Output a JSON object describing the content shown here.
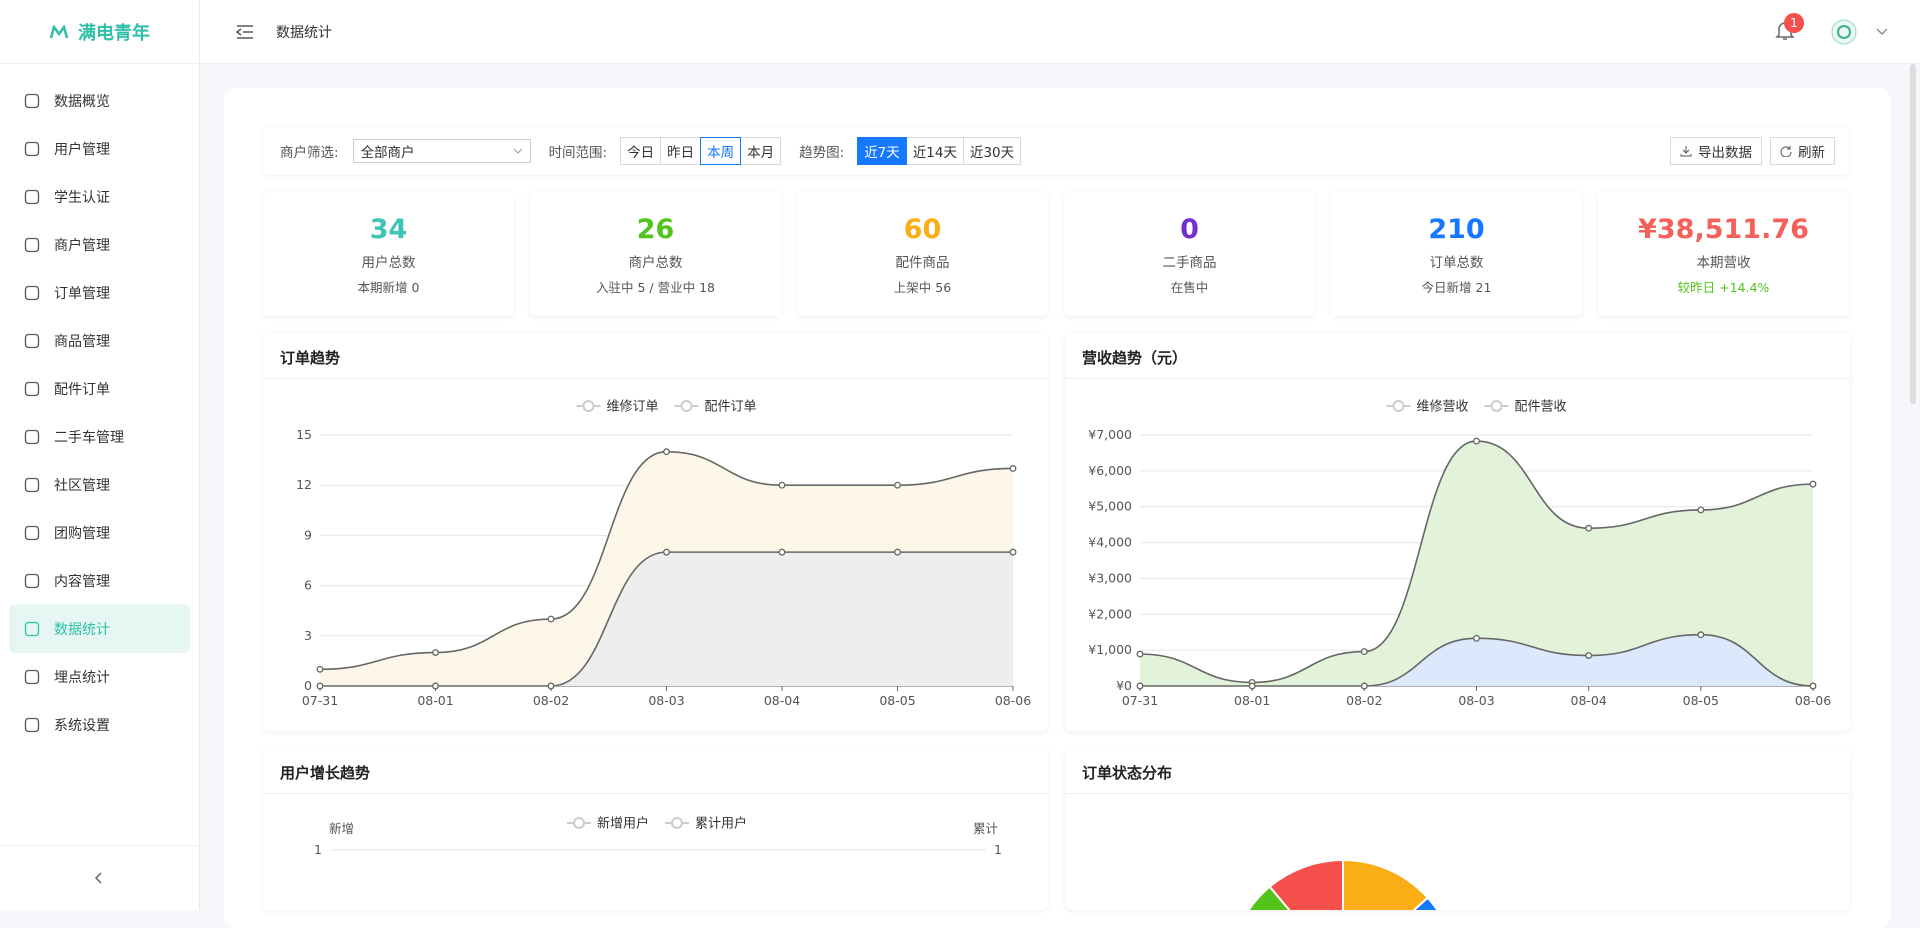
{
  "sidebar": {
    "logo": "满电青年",
    "menu": [
      "数据概览",
      "用户管理",
      "学生认证",
      "商户管理",
      "订单管理",
      "商品管理",
      "配件订单",
      "二手车管理",
      "社区管理",
      "团购管理",
      "内容管理",
      "数据统计",
      "埋点统计",
      "系统设置"
    ],
    "active": 11
  },
  "header": {
    "breadcrumb": "数据统计",
    "badge": 1
  },
  "filters": {
    "merchant_label": "商户筛选:",
    "merchant": "全部商户",
    "range_label": "时间范围:",
    "ranges": [
      "今日",
      "昨日",
      "本周",
      "本月"
    ],
    "range_active": 2,
    "trend_label": "趋势图:",
    "trends": [
      "近7天",
      "近14天",
      "近30天"
    ],
    "trend_active": 0,
    "export": "导出数据",
    "refresh": "刷新"
  },
  "stats": [
    {
      "value": 34,
      "label": "用户总数",
      "sub": "本期新增 0",
      "color": "#3cc4b4"
    },
    {
      "value": 26,
      "label": "商户总数",
      "sub": "入驻中 5 / 营业中 18",
      "color": "#52c41a"
    },
    {
      "value": 60,
      "label": "配件商品",
      "sub": "上架中 56",
      "color": "#faad14"
    },
    {
      "value": 0,
      "label": "二手商品",
      "sub": "在售中",
      "color": "#722ed1"
    },
    {
      "value": 210,
      "label": "订单总数",
      "sub": "今日新增 21",
      "color": "#1677ff"
    },
    {
      "value": "¥38,511.76",
      "label": "本期营收",
      "sub": "较昨日 +14.4%",
      "color": "#f5605a",
      "sub_color": "#52c41a"
    }
  ],
  "charts": [
    {
      "type": "line",
      "title": "订单趋势",
      "categories": [
        "07-31",
        "08-01",
        "08-02",
        "08-03",
        "08-04",
        "08-05",
        "08-06"
      ],
      "series": [
        {
          "name": "维修订单",
          "color": "#666666",
          "area": "#fdf7ea",
          "values": [
            1,
            2,
            4,
            14,
            12,
            12,
            13
          ]
        },
        {
          "name": "配件订单",
          "color": "#666666",
          "area": "#eeeeee",
          "values": [
            0,
            0,
            0,
            8,
            8,
            8,
            8
          ]
        }
      ],
      "ylim": [
        0,
        15
      ],
      "yticks": [
        0,
        3,
        6,
        9,
        12,
        15
      ],
      "grid": true
    },
    {
      "type": "line",
      "title": "营收趋势（元）",
      "categories": [
        "07-31",
        "08-01",
        "08-02",
        "08-03",
        "08-04",
        "08-05",
        "08-06"
      ],
      "series": [
        {
          "name": "维修营收",
          "color": "#666666",
          "area": "#e2f3da",
          "values": [
            890,
            100,
            960,
            6830,
            4400,
            4910,
            5630
          ]
        },
        {
          "name": "配件营收",
          "color": "#666666",
          "area": "#dce8fb",
          "values": [
            0,
            0,
            0,
            1330,
            850,
            1430,
            0
          ]
        }
      ],
      "ylim": [
        0,
        7000
      ],
      "yticks": [
        {
          "value": 0,
          "label": "¥0"
        },
        {
          "value": 1000,
          "label": "¥1,000"
        },
        {
          "value": 2000,
          "label": "¥2,000"
        },
        {
          "value": 3000,
          "label": "¥3,000"
        },
        {
          "value": 4000,
          "label": "¥4,000"
        },
        {
          "value": 5000,
          "label": "¥5,000"
        },
        {
          "value": 6000,
          "label": "¥6,000"
        },
        {
          "value": 7000,
          "label": "¥7,000"
        }
      ],
      "grid": true
    },
    {
      "type": "dual",
      "title": "用户增长趋势",
      "series": [
        {
          "name": "新增用户"
        },
        {
          "name": "累计用户"
        }
      ],
      "ylabel": "新增",
      "y2label": "累计",
      "ylim": [
        0,
        1
      ],
      "yticks": [
        1
      ],
      "y2lim": [
        0,
        1
      ],
      "y2ticks": [
        1
      ],
      "grid": true
    },
    {
      "type": "donut",
      "title": "订单状态分布"
    }
  ]
}
